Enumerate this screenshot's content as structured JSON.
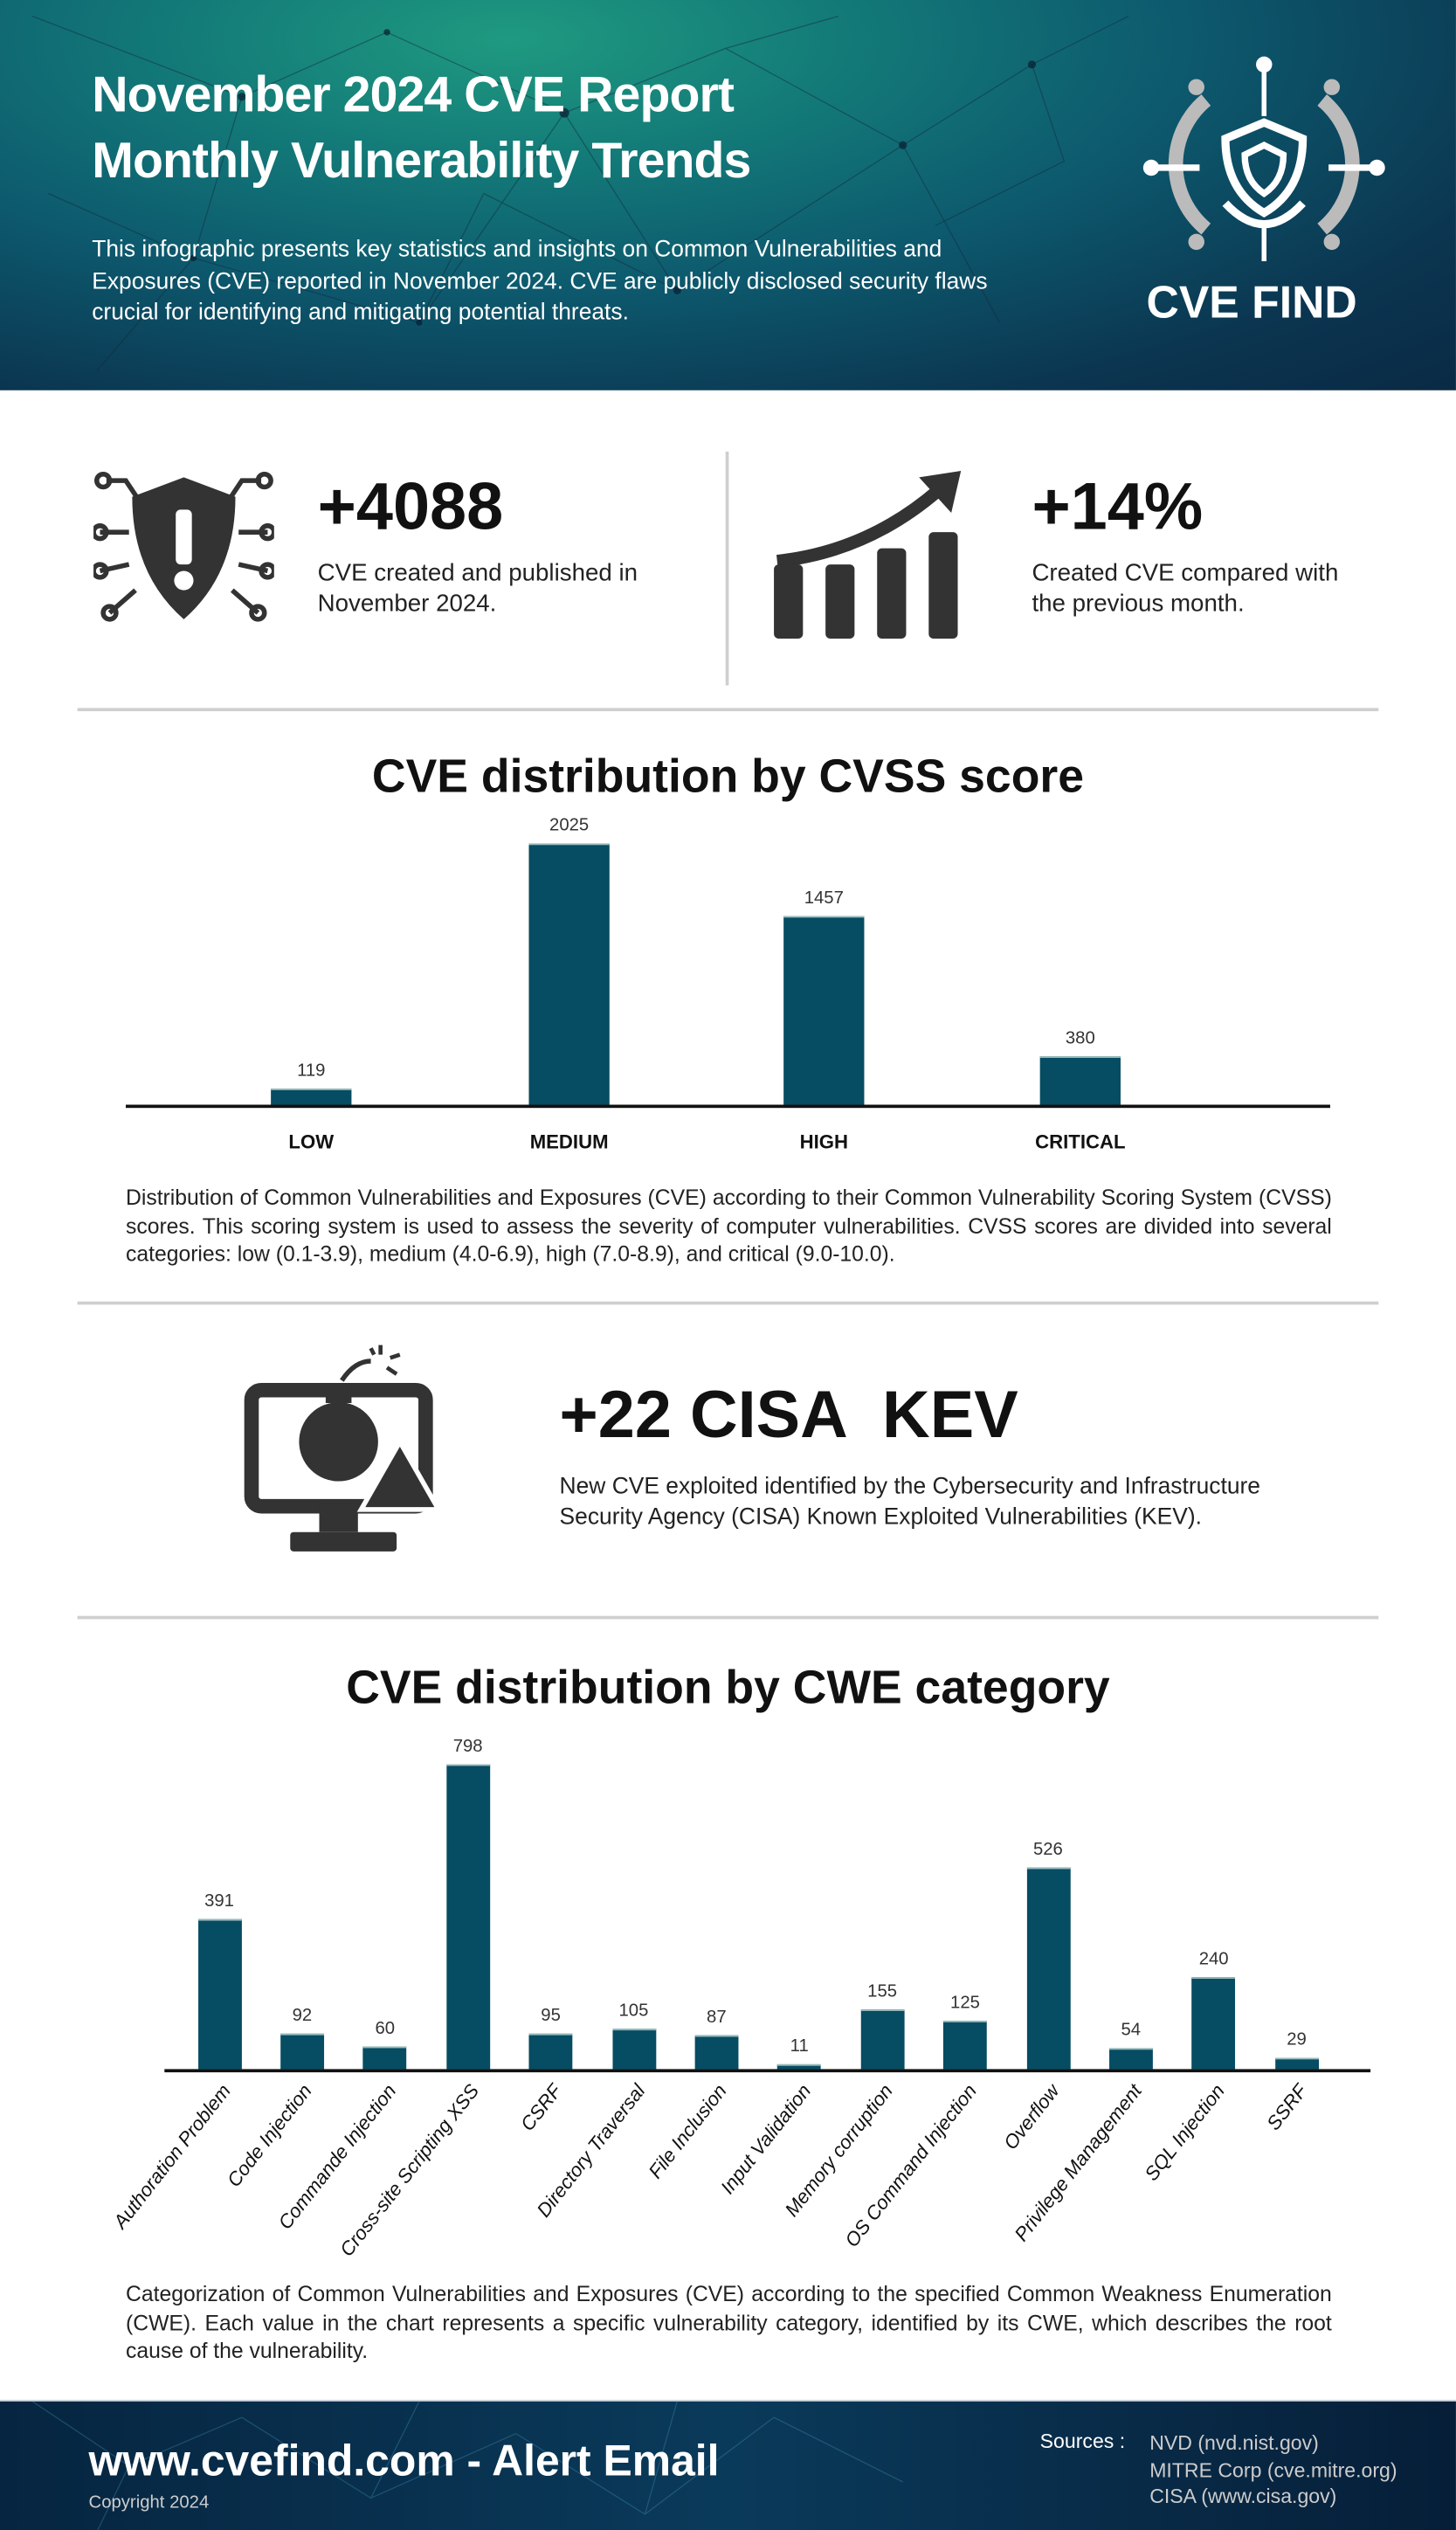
{
  "header": {
    "title_line1": "November 2024 CVE Report",
    "title_line2": "Monthly Vulnerability Trends",
    "description": "This infographic presents key statistics and insights on Common Vulnerabilities and Exposures (CVE) reported in November 2024. CVE are publicly disclosed security flaws crucial for identifying and mitigating potential threats.",
    "logo_text": "CVE FIND"
  },
  "stats": [
    {
      "value": "+4088",
      "text": "CVE created and published in November 2024.",
      "icon": "shield-alert-icon"
    },
    {
      "value": "+14%",
      "text": "Created CVE compared with the previous month.",
      "icon": "growth-chart-icon"
    }
  ],
  "kev": {
    "value": "+22 CISA  KEV",
    "text": "New CVE exploited identified by the Cybersecurity and Infrastructure Security Agency (CISA) Known Exploited Vulnerabilities (KEV).",
    "icon": "bomb-monitor-icon"
  },
  "chart_data": [
    {
      "type": "bar",
      "title": "CVE distribution by CVSS score",
      "categories": [
        "LOW",
        "MEDIUM",
        "HIGH",
        "CRITICAL"
      ],
      "values": [
        119,
        2025,
        1457,
        380
      ],
      "color": "#064c63",
      "description": "Distribution of Common Vulnerabilities and Exposures (CVE) according to their Common Vulnerability Scoring System (CVSS) scores. This scoring system is used to assess the severity of computer vulnerabilities. CVSS scores are divided into several categories: low (0.1-3.9), medium (4.0-6.9), high (7.0-8.9), and critical (9.0-10.0)."
    },
    {
      "type": "bar",
      "title": "CVE distribution by CWE category",
      "categories": [
        "Authoration Problem",
        "Code Injection",
        "Commande Injection",
        "Cross-site Scripting XSS",
        "CSRF",
        "Directory Traversal",
        "File Inclusion",
        "Input Validation",
        "Memory corruption",
        "OS Command Injection",
        "Overflow",
        "Privilege Management",
        "SQL Injection",
        "SSRF"
      ],
      "values": [
        391,
        92,
        60,
        798,
        95,
        105,
        87,
        11,
        155,
        125,
        526,
        54,
        240,
        29
      ],
      "color": "#064c63",
      "description": "Categorization of Common Vulnerabilities and Exposures (CVE) according to the specified Common Weakness Enumeration (CWE). Each value in the chart represents a specific vulnerability category, identified by its CWE, which describes the root cause of the vulnerability."
    }
  ],
  "footer": {
    "site": "www.cvefind.com - Alert Email",
    "copyright": "Copyright 2024",
    "sources_label": "Sources :",
    "sources": [
      "NVD (nvd.nist.gov)",
      "MITRE Corp (cve.mitre.org)",
      "CISA (www.cisa.gov)"
    ]
  }
}
